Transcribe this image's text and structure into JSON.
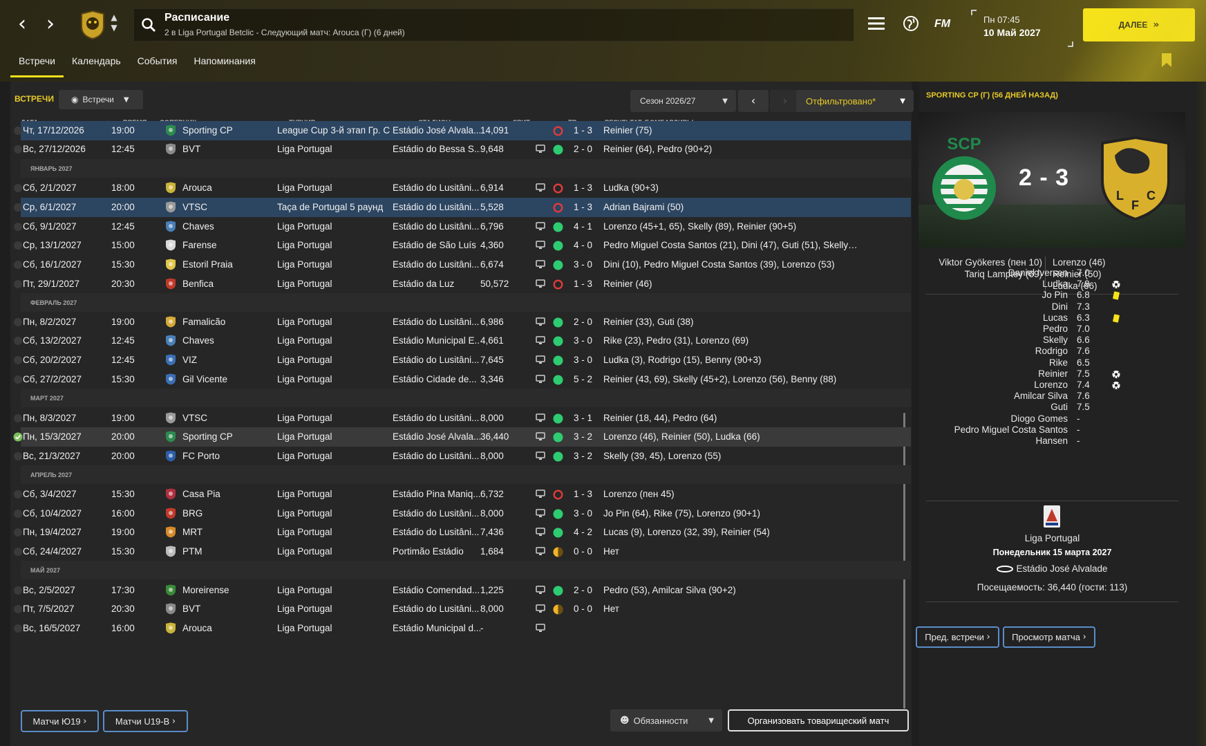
{
  "topbar": {
    "search_title": "Расписание",
    "search_subtitle": "2 в Liga Portugal Betclic - Следующий матч: Arouca (Г) (6 дней)",
    "fm_logo": "FM",
    "time": "Пн 07:45",
    "date": "10 Май 2027",
    "continue_label": "ДАЛЕЕ"
  },
  "subtabs": [
    "Встречи",
    "Календарь",
    "События",
    "Напоминания"
  ],
  "toolbar": {
    "section_title": "ВСТРЕЧИ",
    "view_label": "Встречи",
    "season_label": "Сезон 2026/27",
    "filter_label": "Отфильтровано*"
  },
  "columns": {
    "date": "ДАТА",
    "time": "ВРЕМЯ",
    "opponent": "СОПЕРНИК",
    "competition": "ТУРНИР",
    "stadium": "СТАДИОН",
    "attendance": "ЗРИТ",
    "tv": "ТВ",
    "result": "РЕЗУЛЬТАТ",
    "scorers": "БОМБАРДИРЫ"
  },
  "rows": [
    {
      "type": "match",
      "hl": "blue",
      "date": "Чт, 17/12/2026",
      "time": "19:00",
      "opp": "Sporting CP",
      "crest": "#2e8b4f",
      "comp": "League Cup 3-й этап Гр. С",
      "stad": "Estádio José Alvala...",
      "att": "14,091",
      "tv": false,
      "res": "L",
      "score": "1 - 3",
      "scorers": "Reinier (75)"
    },
    {
      "type": "match",
      "date": "Вс, 27/12/2026",
      "time": "12:45",
      "opp": "BVT",
      "crest": "#8a8a8a",
      "comp": "Liga Portugal",
      "stad": "Estádio do Bessa S...",
      "att": "9,648",
      "tv": true,
      "res": "W",
      "score": "2 - 0",
      "scorers": "Reinier (64), Pedro (90+2)"
    },
    {
      "type": "month",
      "label": "ЯНВАРЬ 2027"
    },
    {
      "type": "match",
      "date": "Сб, 2/1/2027",
      "time": "18:00",
      "opp": "Arouca",
      "crest": "#c9b43a",
      "comp": "Liga Portugal",
      "stad": "Estádio do Lusitâni...",
      "att": "6,914",
      "tv": true,
      "res": "L",
      "score": "1 - 3",
      "scorers": "Ludka (90+3)"
    },
    {
      "type": "match",
      "hl": "blue",
      "date": "Ср, 6/1/2027",
      "time": "20:00",
      "opp": "VTSC",
      "crest": "#9a9a9a",
      "comp": "Taça de Portugal 5 раунд",
      "stad": "Estádio do Lusitâni...",
      "att": "5,528",
      "tv": false,
      "res": "L",
      "score": "1 - 3",
      "scorers": "Adrian Bajrami (50)"
    },
    {
      "type": "match",
      "date": "Сб, 9/1/2027",
      "time": "12:45",
      "opp": "Chaves",
      "crest": "#4a7fb5",
      "comp": "Liga Portugal",
      "stad": "Estádio do Lusitâni...",
      "att": "6,796",
      "tv": true,
      "res": "W",
      "score": "4 - 1",
      "scorers": "Lorenzo (45+1, 65), Skelly (89), Reinier (90+5)"
    },
    {
      "type": "match",
      "date": "Ср, 13/1/2027",
      "time": "15:00",
      "opp": "Farense",
      "crest": "#d9d9d9",
      "comp": "Liga Portugal",
      "stad": "Estádio de São Luís",
      "att": "4,360",
      "tv": true,
      "res": "W",
      "score": "4 - 0",
      "scorers": "Pedro Miguel Costa Santos (21), Dini (47), Guti (51), Skelly (..."
    },
    {
      "type": "match",
      "date": "Сб, 16/1/2027",
      "time": "15:30",
      "opp": "Estoril Praia",
      "crest": "#e0c64a",
      "comp": "Liga Portugal",
      "stad": "Estádio do Lusitâni...",
      "att": "6,674",
      "tv": true,
      "res": "W",
      "score": "3 - 0",
      "scorers": "Dini (10), Pedro Miguel Costa Santos (39), Lorenzo (53)"
    },
    {
      "type": "match",
      "date": "Пт, 29/1/2027",
      "time": "20:30",
      "opp": "Benfica",
      "crest": "#c0392b",
      "comp": "Liga Portugal",
      "stad": "Estádio da Luz",
      "att": "50,572",
      "tv": true,
      "res": "L",
      "score": "1 - 3",
      "scorers": "Reinier (46)"
    },
    {
      "type": "month",
      "label": "ФЕВРАЛЬ 2027"
    },
    {
      "type": "match",
      "date": "Пн, 8/2/2027",
      "time": "19:00",
      "opp": "Famalicão",
      "crest": "#d4a93a",
      "comp": "Liga Portugal",
      "stad": "Estádio do Lusitâni...",
      "att": "6,986",
      "tv": true,
      "res": "W",
      "score": "2 - 0",
      "scorers": "Reinier (33), Guti (38)"
    },
    {
      "type": "match",
      "date": "Сб, 13/2/2027",
      "time": "12:45",
      "opp": "Chaves",
      "crest": "#4a7fb5",
      "comp": "Liga Portugal",
      "stad": "Estádio Municipal E...",
      "att": "4,661",
      "tv": true,
      "res": "W",
      "score": "3 - 0",
      "scorers": "Rike (23), Pedro (31), Lorenzo (69)"
    },
    {
      "type": "match",
      "date": "Сб, 20/2/2027",
      "time": "12:45",
      "opp": "VIZ",
      "crest": "#3b6fb5",
      "comp": "Liga Portugal",
      "stad": "Estádio do Lusitâni...",
      "att": "7,645",
      "tv": true,
      "res": "W",
      "score": "3 - 0",
      "scorers": "Ludka (3), Rodrigo (15), Benny (90+3)"
    },
    {
      "type": "match",
      "date": "Сб, 27/2/2027",
      "time": "15:30",
      "opp": "Gil Vicente",
      "crest": "#3b6fb5",
      "comp": "Liga Portugal",
      "stad": "Estádio Cidade de...",
      "att": "3,346",
      "tv": true,
      "res": "W",
      "score": "5 - 2",
      "scorers": "Reinier (43, 69), Skelly (45+2), Lorenzo (56), Benny (88)"
    },
    {
      "type": "month",
      "label": "МАРТ 2027"
    },
    {
      "type": "match",
      "date": "Пн, 8/3/2027",
      "time": "19:00",
      "opp": "VTSC",
      "crest": "#9a9a9a",
      "comp": "Liga Portugal",
      "stad": "Estádio do Lusitâni...",
      "att": "8,000",
      "tv": true,
      "res": "W",
      "score": "3 - 1",
      "scorers": "Reinier (18, 44), Pedro (64)"
    },
    {
      "type": "match",
      "hl": "grey",
      "checked": true,
      "date": "Пн, 15/3/2027",
      "time": "20:00",
      "opp": "Sporting CP",
      "crest": "#2e8b4f",
      "comp": "Liga Portugal",
      "stad": "Estádio José Alvala...",
      "att": "36,440",
      "tv": true,
      "res": "W",
      "score": "3 - 2",
      "scorers": "Lorenzo (46), Reinier (50), Ludka (66)"
    },
    {
      "type": "match",
      "date": "Вс, 21/3/2027",
      "time": "20:00",
      "opp": "FC Porto",
      "crest": "#2d5fa8",
      "comp": "Liga Portugal",
      "stad": "Estádio do Lusitâni...",
      "att": "8,000",
      "tv": true,
      "res": "W",
      "score": "3 - 2",
      "scorers": "Skelly (39, 45), Lorenzo (55)"
    },
    {
      "type": "month",
      "label": "АПРЕЛЬ 2027"
    },
    {
      "type": "match",
      "date": "Сб, 3/4/2027",
      "time": "15:30",
      "opp": "Casa Pia",
      "crest": "#b03040",
      "comp": "Liga Portugal",
      "stad": "Estádio Pina Maniq...",
      "att": "6,732",
      "tv": true,
      "res": "L",
      "score": "1 - 3",
      "scorers": "Lorenzo (пен 45)"
    },
    {
      "type": "match",
      "date": "Сб, 10/4/2027",
      "time": "16:00",
      "opp": "BRG",
      "crest": "#c0392b",
      "comp": "Liga Portugal",
      "stad": "Estádio do Lusitâni...",
      "att": "8,000",
      "tv": true,
      "res": "W",
      "score": "3 - 0",
      "scorers": "Jo Pin (64), Rike (75), Lorenzo (90+1)"
    },
    {
      "type": "match",
      "date": "Пн, 19/4/2027",
      "time": "19:00",
      "opp": "MRT",
      "crest": "#d68a2a",
      "comp": "Liga Portugal",
      "stad": "Estádio do Lusitâni...",
      "att": "7,436",
      "tv": true,
      "res": "W",
      "score": "4 - 2",
      "scorers": "Lucas (9), Lorenzo (32, 39), Reinier (54)"
    },
    {
      "type": "match",
      "date": "Сб, 24/4/2027",
      "time": "15:30",
      "opp": "PTM",
      "crest": "#bbbbbb",
      "comp": "Liga Portugal",
      "stad": "Portimão Estádio",
      "att": "1,684",
      "tv": true,
      "res": "D",
      "score": "0 - 0",
      "scorers": "Нет"
    },
    {
      "type": "month",
      "label": "МАЙ 2027"
    },
    {
      "type": "match",
      "date": "Вс, 2/5/2027",
      "time": "17:30",
      "opp": "Moreirense",
      "crest": "#3a8a3a",
      "comp": "Liga Portugal",
      "stad": "Estádio Comendad...",
      "att": "1,225",
      "tv": true,
      "res": "W",
      "score": "2 - 0",
      "scorers": "Pedro (53), Amilcar Silva (90+2)"
    },
    {
      "type": "match",
      "date": "Пт, 7/5/2027",
      "time": "20:30",
      "opp": "BVT",
      "crest": "#8a8a8a",
      "comp": "Liga Portugal",
      "stad": "Estádio do Lusitâni...",
      "att": "8,000",
      "tv": true,
      "res": "D",
      "score": "0 - 0",
      "scorers": "Нет"
    },
    {
      "type": "match",
      "date": "Вс, 16/5/2027",
      "time": "16:00",
      "opp": "Arouca",
      "crest": "#c9b43a",
      "comp": "Liga Portugal",
      "stad": "Estádio Municipal d...",
      "att": "-",
      "tv": true,
      "res": "",
      "score": "",
      "scorers": ""
    }
  ],
  "bottom": {
    "u19_label": "Матчи Ю19",
    "u19b_label": "Матчи U19-В",
    "duties_label": "Обязанности",
    "friendly_label": "Организовать товарищеский матч"
  },
  "colors": {
    "win": "#2ecc71",
    "loss": "#e03b3b",
    "draw": "#f0b429",
    "accent": "#f5e21a"
  },
  "right": {
    "header": "SPORTING CP (Г) (56 ДНЕЙ НАЗАД)",
    "score": "2 - 3",
    "home_goals": [
      "Viktor Gyökeres (пен 10)",
      "Tariq Lamptey (69)"
    ],
    "away_goals": [
      "Lorenzo (46)",
      "Reinier (50)",
      "Ludka (66)"
    ],
    "players": [
      {
        "name": "Daniel Iversen",
        "rating": "7.0",
        "icon": ""
      },
      {
        "name": "Ludka",
        "rating": "7.9",
        "icon": "ball"
      },
      {
        "name": "Jo Pin",
        "rating": "6.8",
        "icon": "yellow"
      },
      {
        "name": "Dini",
        "rating": "7.3",
        "icon": ""
      },
      {
        "name": "Lucas",
        "rating": "6.3",
        "icon": "yellow"
      },
      {
        "name": "Pedro",
        "rating": "7.0",
        "icon": ""
      },
      {
        "name": "Skelly",
        "rating": "6.6",
        "icon": ""
      },
      {
        "name": "Rodrigo",
        "rating": "7.6",
        "icon": ""
      },
      {
        "name": "Rike",
        "rating": "6.5",
        "icon": ""
      },
      {
        "name": "Reinier",
        "rating": "7.5",
        "icon": "ball"
      },
      {
        "name": "Lorenzo",
        "rating": "7.4",
        "icon": "ball"
      },
      {
        "name": "Amilcar Silva",
        "rating": "7.6",
        "icon": ""
      },
      {
        "name": "Guti",
        "rating": "7.5",
        "icon": ""
      },
      {
        "name": "Diogo Gomes",
        "rating": "-",
        "icon": ""
      },
      {
        "name": "Pedro Miguel Costa Santos",
        "rating": "-",
        "icon": ""
      },
      {
        "name": "Hansen",
        "rating": "-",
        "icon": ""
      }
    ],
    "competition": "Liga Portugal",
    "match_date": "Понедельник 15 марта 2027",
    "stadium": "Estádio José Alvalade",
    "attendance": "Посещаемость: 36,440 (гости: 113)",
    "prev_meetings_label": "Пред. встречи",
    "view_match_label": "Просмотр матча"
  }
}
